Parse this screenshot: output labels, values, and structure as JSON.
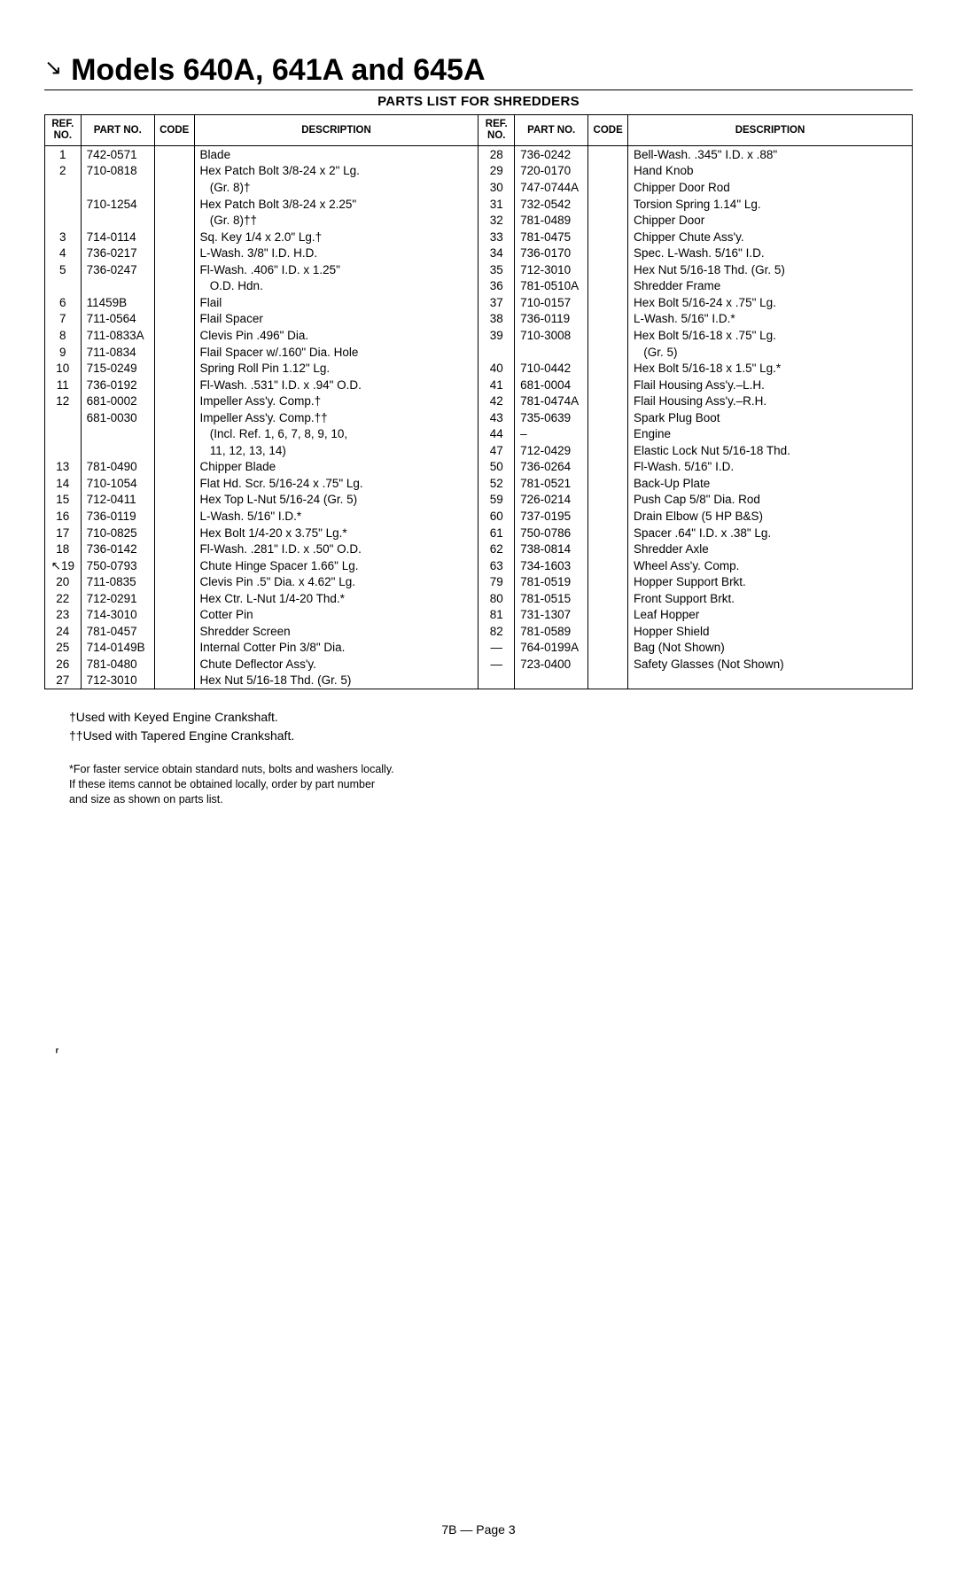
{
  "title": "Models 640A, 641A and 645A",
  "subtitle": "PARTS LIST FOR SHREDDERS",
  "headers": {
    "ref": "REF.\nNO.",
    "part": "PART\nNO.",
    "code": "CODE",
    "desc": "DESCRIPTION"
  },
  "rows_left": [
    {
      "ref": "1",
      "part": "742-0571",
      "desc": "Blade"
    },
    {
      "ref": "2",
      "part": "710-0818",
      "desc": "Hex Patch Bolt 3/8-24 x 2\" Lg."
    },
    {
      "ref": "",
      "part": "",
      "desc": "   (Gr. 8)†"
    },
    {
      "ref": "",
      "part": "710-1254",
      "desc": "Hex Patch Bolt 3/8-24 x 2.25\""
    },
    {
      "ref": "",
      "part": "",
      "desc": "   (Gr. 8)††"
    },
    {
      "ref": "3",
      "part": "714-0114",
      "desc": "Sq. Key 1/4 x 2.0\" Lg.†"
    },
    {
      "ref": "4",
      "part": "736-0217",
      "desc": "L-Wash. 3/8\" I.D. H.D."
    },
    {
      "ref": "5",
      "part": "736-0247",
      "desc": "Fl-Wash. .406\" I.D. x 1.25\""
    },
    {
      "ref": "",
      "part": "",
      "desc": "   O.D. Hdn."
    },
    {
      "ref": "6",
      "part": "11459B",
      "desc": "Flail"
    },
    {
      "ref": "7",
      "part": "711-0564",
      "desc": "Flail Spacer"
    },
    {
      "ref": "8",
      "part": "711-0833A",
      "desc": "Clevis Pin .496\" Dia."
    },
    {
      "ref": "9",
      "part": "711-0834",
      "desc": "Flail Spacer w/.160\" Dia. Hole"
    },
    {
      "ref": "10",
      "part": "715-0249",
      "desc": "Spring Roll Pin 1.12\" Lg."
    },
    {
      "ref": "11",
      "part": "736-0192",
      "desc": "Fl-Wash. .531\" I.D. x .94\" O.D."
    },
    {
      "ref": "12",
      "part": "681-0002",
      "desc": "Impeller Ass'y. Comp.†"
    },
    {
      "ref": "",
      "part": "681-0030",
      "desc": "Impeller Ass'y. Comp.††"
    },
    {
      "ref": "",
      "part": "",
      "desc": "   (Incl. Ref. 1, 6, 7, 8, 9, 10,"
    },
    {
      "ref": "",
      "part": "",
      "desc": "   11, 12, 13, 14)"
    },
    {
      "ref": "13",
      "part": "781-0490",
      "desc": "Chipper Blade"
    },
    {
      "ref": "14",
      "part": "710-1054",
      "desc": "Flat Hd. Scr. 5/16-24 x .75\" Lg."
    },
    {
      "ref": "15",
      "part": "712-0411",
      "desc": "Hex Top L-Nut 5/16-24 (Gr. 5)"
    },
    {
      "ref": "16",
      "part": "736-0119",
      "desc": "L-Wash. 5/16\" I.D.*"
    },
    {
      "ref": "17",
      "part": "710-0825",
      "desc": "Hex Bolt 1/4-20 x 3.75\" Lg.*"
    },
    {
      "ref": "18",
      "part": "736-0142",
      "desc": "Fl-Wash. .281\" I.D. x .50\" O.D."
    },
    {
      "ref": "↖19",
      "part": "750-0793",
      "desc": "Chute Hinge Spacer 1.66\" Lg."
    },
    {
      "ref": "20",
      "part": "711-0835",
      "desc": "Clevis Pin .5\" Dia. x 4.62\" Lg."
    },
    {
      "ref": "22",
      "part": "712-0291",
      "desc": "Hex Ctr. L-Nut 1/4-20 Thd.*"
    },
    {
      "ref": "23",
      "part": "714-3010",
      "desc": "Cotter Pin"
    },
    {
      "ref": "24",
      "part": "781-0457",
      "desc": "Shredder Screen"
    },
    {
      "ref": "25",
      "part": "714-0149B",
      "desc": "Internal Cotter Pin 3/8\" Dia."
    },
    {
      "ref": "26",
      "part": "781-0480",
      "desc": "Chute Deflector Ass'y."
    },
    {
      "ref": "27",
      "part": "712-3010",
      "desc": "Hex Nut 5/16-18 Thd. (Gr. 5)"
    }
  ],
  "rows_right": [
    {
      "ref": "28",
      "part": "736-0242",
      "desc": "Bell-Wash. .345\" I.D. x .88\""
    },
    {
      "ref": "29",
      "part": "720-0170",
      "desc": "Hand Knob"
    },
    {
      "ref": "30",
      "part": "747-0744A",
      "desc": "Chipper Door Rod"
    },
    {
      "ref": "31",
      "part": "732-0542",
      "desc": "Torsion Spring 1.14\" Lg."
    },
    {
      "ref": "32",
      "part": "781-0489",
      "desc": "Chipper Door"
    },
    {
      "ref": "33",
      "part": "781-0475",
      "desc": "Chipper Chute Ass'y."
    },
    {
      "ref": "34",
      "part": "736-0170",
      "desc": "Spec. L-Wash. 5/16\" I.D."
    },
    {
      "ref": "35",
      "part": "712-3010",
      "desc": "Hex Nut 5/16-18 Thd. (Gr. 5)"
    },
    {
      "ref": "36",
      "part": "781-0510A",
      "desc": "Shredder Frame"
    },
    {
      "ref": "37",
      "part": "710-0157",
      "desc": "Hex Bolt 5/16-24 x .75\" Lg."
    },
    {
      "ref": "38",
      "part": "736-0119",
      "desc": "L-Wash. 5/16\" I.D.*"
    },
    {
      "ref": "39",
      "part": "710-3008",
      "desc": "Hex Bolt 5/16-18 x .75\" Lg."
    },
    {
      "ref": "",
      "part": "",
      "desc": "   (Gr. 5)"
    },
    {
      "ref": "40",
      "part": "710-0442",
      "desc": "Hex Bolt 5/16-18 x 1.5\" Lg.*"
    },
    {
      "ref": "41",
      "part": "681-0004",
      "desc": "Flail Housing Ass'y.–L.H."
    },
    {
      "ref": "42",
      "part": "781-0474A",
      "desc": "Flail Housing Ass'y.–R.H."
    },
    {
      "ref": "43",
      "part": "735-0639",
      "desc": "Spark Plug Boot"
    },
    {
      "ref": "44",
      "part": "–",
      "desc": "Engine"
    },
    {
      "ref": "47",
      "part": "712-0429",
      "desc": "Elastic Lock Nut 5/16-18 Thd."
    },
    {
      "ref": "50",
      "part": "736-0264",
      "desc": "Fl-Wash. 5/16\" I.D."
    },
    {
      "ref": "52",
      "part": "781-0521",
      "desc": "Back-Up Plate"
    },
    {
      "ref": "59",
      "part": "726-0214",
      "desc": "Push Cap 5/8\" Dia. Rod"
    },
    {
      "ref": "60",
      "part": "737-0195",
      "desc": "Drain Elbow (5 HP B&S)"
    },
    {
      "ref": "61",
      "part": "750-0786",
      "desc": "Spacer .64\" I.D. x .38\" Lg."
    },
    {
      "ref": "62",
      "part": "738-0814",
      "desc": "Shredder Axle"
    },
    {
      "ref": "63",
      "part": "734-1603",
      "desc": "Wheel Ass'y. Comp."
    },
    {
      "ref": "79",
      "part": "781-0519",
      "desc": "Hopper Support Brkt."
    },
    {
      "ref": "80",
      "part": "781-0515",
      "desc": "Front Support Brkt."
    },
    {
      "ref": "81",
      "part": "731-1307",
      "desc": "Leaf Hopper"
    },
    {
      "ref": "82",
      "part": "781-0589",
      "desc": "Hopper Shield"
    },
    {
      "ref": "—",
      "part": "764-0199A",
      "desc": "Bag (Not Shown)"
    },
    {
      "ref": "—",
      "part": "723-0400",
      "desc": "Safety Glasses (Not Shown)"
    }
  ],
  "notes": {
    "n1": "†Used with Keyed Engine Crankshaft.",
    "n2": "††Used with Tapered Engine Crankshaft."
  },
  "fine": {
    "l1": "*For faster service obtain standard nuts, bolts and washers locally.",
    "l2": "If these items cannot be obtained locally, order by part number",
    "l3": "and size as shown on parts list."
  },
  "page_no": "7B — Page 3"
}
